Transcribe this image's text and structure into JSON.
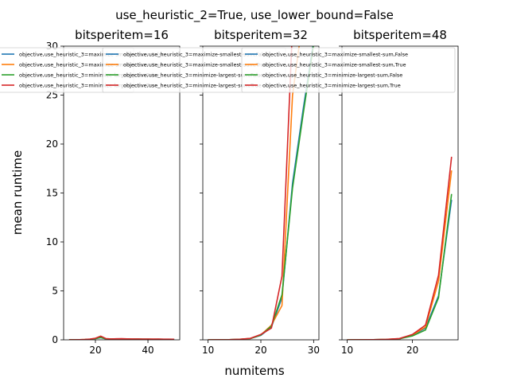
{
  "figure": {
    "suptitle": "use_heuristic_2=True, use_lower_bound=False",
    "xlabel": "numitems",
    "ylabel": "mean runtime"
  },
  "series_colors": [
    "#1f77b4",
    "#ff7f0e",
    "#2ca02c",
    "#d62728"
  ],
  "chart_data": [
    {
      "type": "line",
      "title": "bitsperitem=16",
      "xlim": [
        7.9,
        52.1
      ],
      "ylim": [
        0,
        30
      ],
      "xticks": [
        20,
        40
      ],
      "yticks": [
        0,
        5,
        10,
        15,
        20,
        25,
        30
      ],
      "legend_placement": "top-left",
      "series": [
        {
          "name": "objective,use_heuristic_3=maximize-smallest-sum,False",
          "x": [
            10,
            12,
            14,
            16,
            18,
            20,
            22,
            24,
            26,
            28,
            30,
            32,
            34,
            36,
            38,
            40,
            42,
            44,
            46,
            48,
            50
          ],
          "y": [
            0.01,
            0.01,
            0.02,
            0.03,
            0.06,
            0.12,
            0.22,
            0.1,
            0.08,
            0.1,
            0.09,
            0.08,
            0.07,
            0.08,
            0.07,
            0.07,
            0.06,
            0.07,
            0.06,
            0.06,
            0.05
          ]
        },
        {
          "name": "objective,use_heuristic_3=maximize-smallest-sum,True",
          "x": [
            10,
            12,
            14,
            16,
            18,
            20,
            22,
            24,
            26,
            28,
            30,
            32,
            34,
            36,
            38,
            40,
            42,
            44,
            46,
            48,
            50
          ],
          "y": [
            0.01,
            0.01,
            0.02,
            0.04,
            0.07,
            0.14,
            0.3,
            0.12,
            0.09,
            0.1,
            0.1,
            0.09,
            0.08,
            0.08,
            0.07,
            0.07,
            0.07,
            0.07,
            0.06,
            0.06,
            0.05
          ]
        },
        {
          "name": "objective,use_heuristic_3=minimize-largest-sum,False",
          "x": [
            10,
            12,
            14,
            16,
            18,
            20,
            22,
            24,
            26,
            28,
            30,
            32,
            34,
            36,
            38,
            40,
            42,
            44,
            46,
            48,
            50
          ],
          "y": [
            0.01,
            0.01,
            0.02,
            0.03,
            0.06,
            0.12,
            0.24,
            0.1,
            0.08,
            0.09,
            0.09,
            0.08,
            0.07,
            0.08,
            0.07,
            0.07,
            0.06,
            0.06,
            0.06,
            0.06,
            0.05
          ]
        },
        {
          "name": "objective,use_heuristic_3=minimize-largest-sum,True",
          "x": [
            10,
            12,
            14,
            16,
            18,
            20,
            22,
            24,
            26,
            28,
            30,
            32,
            34,
            36,
            38,
            40,
            42,
            44,
            46,
            48,
            50
          ],
          "y": [
            0.01,
            0.01,
            0.02,
            0.04,
            0.08,
            0.16,
            0.38,
            0.12,
            0.09,
            0.11,
            0.12,
            0.1,
            0.09,
            0.09,
            0.08,
            0.08,
            0.08,
            0.08,
            0.07,
            0.07,
            0.06
          ]
        }
      ]
    },
    {
      "type": "line",
      "title": "bitsperitem=32",
      "xlim": [
        9.0,
        31.0
      ],
      "ylim": [
        0,
        30
      ],
      "xticks": [
        10,
        20,
        30
      ],
      "yticks": [
        0,
        5,
        10,
        15,
        20,
        25,
        30
      ],
      "legend_placement": "top-right",
      "series": [
        {
          "name": "objective,use_heuristic_3=maximize-smallest-sum,False",
          "x": [
            10,
            12,
            14,
            16,
            18,
            20,
            22,
            24,
            26,
            28,
            30
          ],
          "y": [
            0.0,
            0.01,
            0.02,
            0.05,
            0.12,
            0.45,
            1.3,
            4.3,
            16.0,
            23.5,
            30.5
          ]
        },
        {
          "name": "objective,use_heuristic_3=maximize-smallest-sum,True",
          "x": [
            10,
            12,
            14,
            16,
            18,
            20,
            22,
            24,
            26,
            28
          ],
          "y": [
            0.0,
            0.01,
            0.02,
            0.06,
            0.14,
            0.5,
            1.5,
            3.5,
            25.0,
            33.0
          ]
        },
        {
          "name": "objective,use_heuristic_3=minimize-largest-sum,False",
          "x": [
            10,
            12,
            14,
            16,
            18,
            20,
            22,
            24,
            26,
            28,
            30
          ],
          "y": [
            0.0,
            0.01,
            0.02,
            0.05,
            0.13,
            0.48,
            1.4,
            4.6,
            15.5,
            23.0,
            30.2
          ]
        },
        {
          "name": "objective,use_heuristic_3=minimize-largest-sum,True",
          "x": [
            10,
            12,
            14,
            16,
            18,
            20,
            22,
            24,
            26
          ],
          "y": [
            0.0,
            0.01,
            0.02,
            0.06,
            0.15,
            0.55,
            1.2,
            6.5,
            32.0
          ]
        }
      ]
    },
    {
      "type": "line",
      "title": "bitsperitem=48",
      "xlim": [
        9.2,
        27.0
      ],
      "ylim": [
        0,
        30
      ],
      "xticks": [
        10,
        20
      ],
      "yticks": [
        0,
        5,
        10,
        15,
        20,
        25,
        30
      ],
      "legend_placement": "top-center",
      "series": [
        {
          "name": "objective,use_heuristic_3=maximize-smallest-sum,False",
          "x": [
            10,
            12,
            14,
            16,
            18,
            20,
            22,
            24,
            26
          ],
          "y": [
            0.0,
            0.01,
            0.02,
            0.04,
            0.1,
            0.45,
            1.2,
            4.5,
            14.3
          ]
        },
        {
          "name": "objective,use_heuristic_3=maximize-smallest-sum,True",
          "x": [
            10,
            12,
            14,
            16,
            18,
            20,
            22,
            24,
            26
          ],
          "y": [
            0.0,
            0.01,
            0.02,
            0.05,
            0.12,
            0.5,
            1.3,
            6.0,
            17.3
          ]
        },
        {
          "name": "objective,use_heuristic_3=minimize-largest-sum,False",
          "x": [
            10,
            12,
            14,
            16,
            18,
            20,
            22,
            24,
            26
          ],
          "y": [
            0.0,
            0.01,
            0.02,
            0.04,
            0.1,
            0.4,
            1.0,
            4.3,
            14.9
          ]
        },
        {
          "name": "objective,use_heuristic_3=minimize-largest-sum,True",
          "x": [
            10,
            12,
            14,
            16,
            18,
            20,
            22,
            24,
            26
          ],
          "y": [
            0.0,
            0.01,
            0.02,
            0.05,
            0.13,
            0.55,
            1.5,
            6.6,
            18.7
          ]
        }
      ]
    }
  ]
}
